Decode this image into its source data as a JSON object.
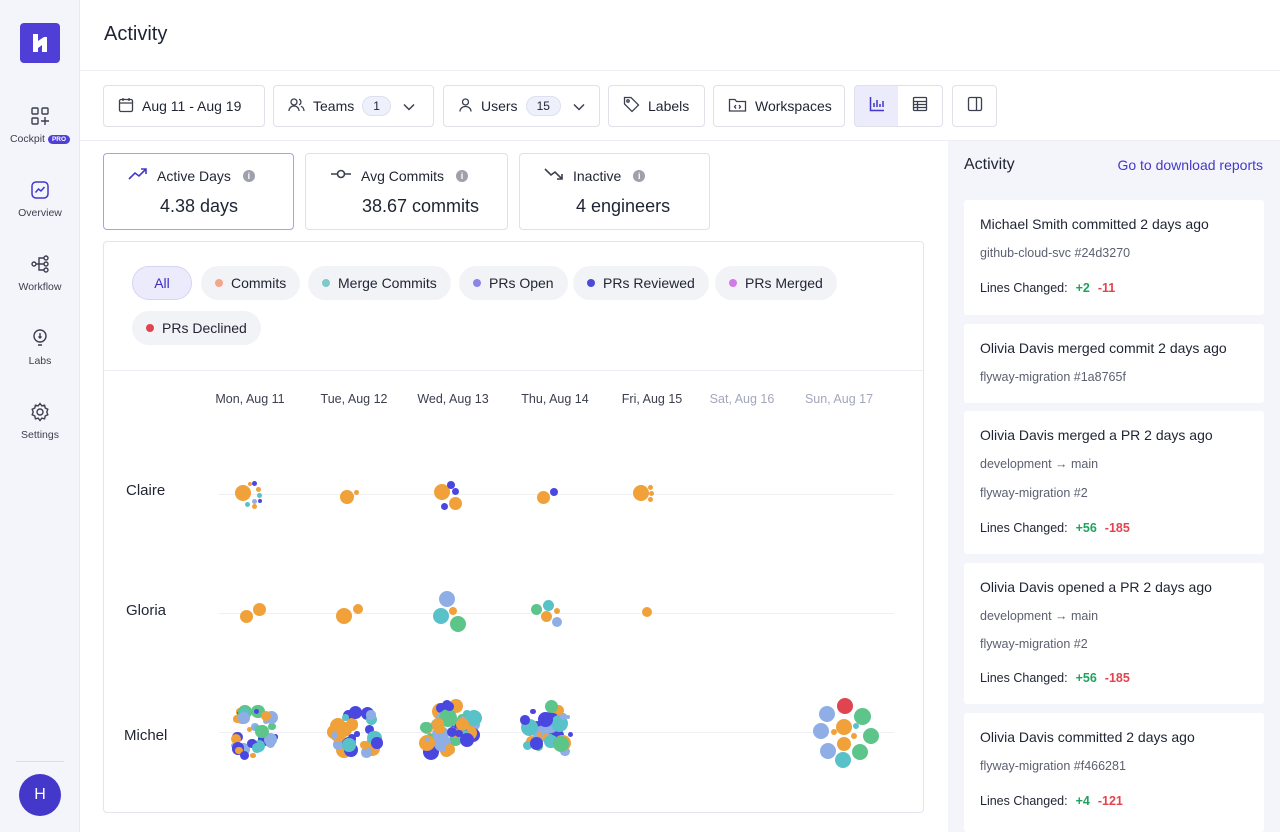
{
  "sidebar": {
    "items": [
      {
        "label": "Cockpit",
        "badge": "PRO",
        "icon": "cockpit-grid-icon"
      },
      {
        "label": "Overview",
        "icon": "overview-chart-icon"
      },
      {
        "label": "Workflow",
        "icon": "workflow-icon"
      },
      {
        "label": "Labs",
        "icon": "bulb-icon"
      },
      {
        "label": "Settings",
        "icon": "gear-icon"
      }
    ],
    "avatar_initial": "H"
  },
  "header": {
    "title": "Activity"
  },
  "toolbar": {
    "date_range": "Aug 11 - Aug 19",
    "teams_label": "Teams",
    "teams_count": "1",
    "users_label": "Users",
    "users_count": "15",
    "labels_label": "Labels",
    "workspaces_label": "Workspaces",
    "view_mode": "chart"
  },
  "stats": [
    {
      "label": "Active Days",
      "value": "4.38 days",
      "icon": "trend-up-icon"
    },
    {
      "label": "Avg Commits",
      "value": "38.67 commits",
      "icon": "commit-icon"
    },
    {
      "label": "Inactive",
      "value": "4 engineers",
      "icon": "trend-down-icon"
    }
  ],
  "filters": {
    "all_label": "All",
    "items": [
      {
        "label": "Commits",
        "color": "#f4a58a"
      },
      {
        "label": "Merge Commits",
        "color": "#7ec9c9"
      },
      {
        "label": "PRs Open",
        "color": "#8a86e8"
      },
      {
        "label": "PRs Reviewed",
        "color": "#4a4bd6"
      },
      {
        "label": "PRs Merged",
        "color": "#d27ae8"
      },
      {
        "label": "PRs Declined",
        "color": "#e0444f"
      }
    ]
  },
  "chart_data": {
    "type": "scatter",
    "days": [
      "Mon, Aug 11",
      "Tue, Aug 12",
      "Wed, Aug 13",
      "Thu, Aug 14",
      "Fri, Aug 15",
      "Sat, Aug 16",
      "Sun, Aug 17"
    ],
    "weekend": [
      false,
      false,
      false,
      false,
      false,
      true,
      true
    ],
    "users": [
      "Claire",
      "Gloria",
      "Michel"
    ],
    "palette": {
      "orange": "#f0a13a",
      "blue": "#4a47e0",
      "lightblue": "#8faee6",
      "teal": "#58c2c8",
      "green": "#5dc48a",
      "red": "#e0444f"
    }
  },
  "right_panel": {
    "title": "Activity",
    "link": "Go to download reports",
    "lines_changed_label": "Lines Changed:",
    "activities": [
      {
        "title": "Michael Smith committed 2 days ago",
        "lines": [
          "github-cloud-svc #24d3270"
        ],
        "added": "+2",
        "removed": "-11"
      },
      {
        "title": "Olivia Davis merged commit 2 days ago",
        "lines": [
          "flyway-migration #1a8765f"
        ]
      },
      {
        "title": "Olivia Davis merged a PR 2 days ago",
        "lines": [
          "development → main",
          "flyway-migration #2"
        ],
        "added": "+56",
        "removed": "-185"
      },
      {
        "title": "Olivia Davis opened a PR 2 days ago",
        "lines": [
          "development → main",
          "flyway-migration #2"
        ],
        "added": "+56",
        "removed": "-185"
      },
      {
        "title": "Olivia Davis committed 2 days ago",
        "lines": [
          "flyway-migration #f466281"
        ],
        "added": "+4",
        "removed": "-121"
      }
    ]
  }
}
